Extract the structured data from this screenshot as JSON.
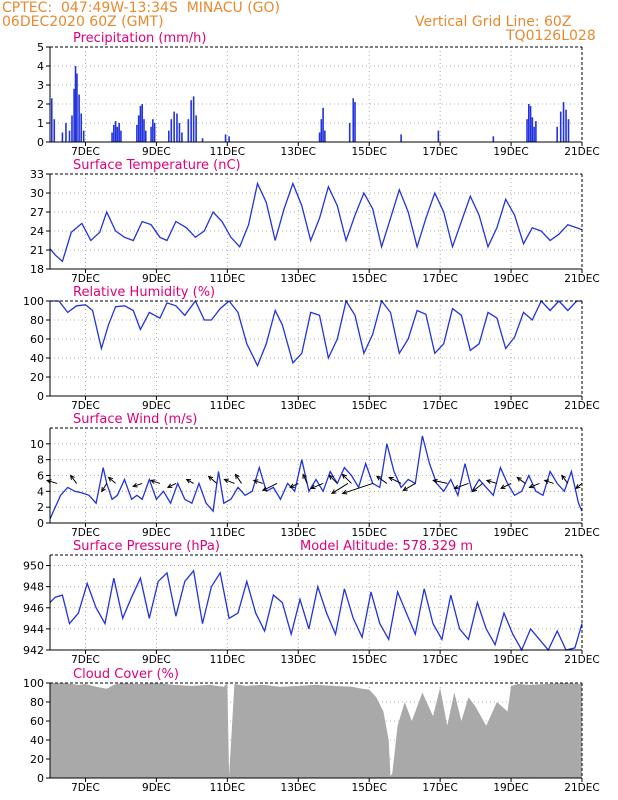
{
  "header": {
    "line1_left": "CPTEC:  047:49W-13:34S  MINACU (GO)",
    "line2_left": "06DEC2020 60Z (GMT)",
    "line1_right": "Vertical Grid Line: 60Z",
    "line2_right": "TQ0126L028"
  },
  "colors": {
    "header": "#e8892f",
    "panel_title": "#e0007a",
    "line": "#2233dd",
    "bar": "#2233dd",
    "cloud": "#a9a9a9",
    "arrow": "#000000"
  },
  "x_ticks": [
    "7DEC",
    "9DEC",
    "11DEC",
    "13DEC",
    "15DEC",
    "17DEC",
    "19DEC",
    "21DEC"
  ],
  "extra_label": "Model Altitude: 578.329 m",
  "chart_data": [
    {
      "type": "bar",
      "title": "Precipitation (mm/h)",
      "ylim": [
        0,
        5
      ],
      "yticks": [
        0,
        1,
        2,
        3,
        4,
        5
      ],
      "x_range": [
        6.0,
        21.0
      ],
      "values": [
        [
          6.05,
          2.3
        ],
        [
          6.12,
          1.2
        ],
        [
          6.35,
          0.5
        ],
        [
          6.45,
          1.0
        ],
        [
          6.55,
          0.6
        ],
        [
          6.62,
          1.4
        ],
        [
          6.68,
          2.8
        ],
        [
          6.72,
          4.0
        ],
        [
          6.76,
          3.6
        ],
        [
          6.82,
          2.5
        ],
        [
          6.88,
          1.5
        ],
        [
          6.95,
          0.6
        ],
        [
          7.75,
          0.5
        ],
        [
          7.8,
          0.9
        ],
        [
          7.85,
          1.1
        ],
        [
          7.9,
          0.8
        ],
        [
          7.95,
          1.0
        ],
        [
          8.0,
          0.6
        ],
        [
          8.45,
          0.9
        ],
        [
          8.5,
          1.4
        ],
        [
          8.55,
          1.9
        ],
        [
          8.6,
          2.0
        ],
        [
          8.65,
          1.2
        ],
        [
          8.7,
          0.6
        ],
        [
          8.85,
          0.8
        ],
        [
          8.9,
          1.2
        ],
        [
          8.95,
          1.0
        ],
        [
          9.35,
          0.6
        ],
        [
          9.42,
          1.2
        ],
        [
          9.5,
          1.6
        ],
        [
          9.58,
          1.5
        ],
        [
          9.65,
          1.0
        ],
        [
          9.72,
          0.5
        ],
        [
          9.9,
          1.2
        ],
        [
          9.98,
          2.2
        ],
        [
          10.05,
          2.4
        ],
        [
          10.12,
          1.4
        ],
        [
          10.3,
          0.2
        ],
        [
          10.95,
          0.4
        ],
        [
          11.05,
          0.3
        ],
        [
          13.6,
          0.5
        ],
        [
          13.65,
          1.2
        ],
        [
          13.7,
          1.8
        ],
        [
          13.75,
          0.6
        ],
        [
          14.45,
          1.0
        ],
        [
          14.55,
          2.3
        ],
        [
          14.6,
          2.1
        ],
        [
          15.9,
          0.4
        ],
        [
          16.95,
          0.6
        ],
        [
          18.5,
          0.3
        ],
        [
          19.45,
          1.2
        ],
        [
          19.5,
          2.0
        ],
        [
          19.55,
          1.9
        ],
        [
          19.6,
          1.3
        ],
        [
          19.65,
          0.8
        ],
        [
          19.7,
          1.1
        ],
        [
          20.3,
          0.8
        ],
        [
          20.4,
          1.6
        ],
        [
          20.48,
          2.1
        ],
        [
          20.55,
          1.7
        ],
        [
          20.62,
          1.2
        ]
      ]
    },
    {
      "type": "line",
      "title": "Surface Temperature (nC)",
      "ylim": [
        18,
        33
      ],
      "yticks": [
        18,
        21,
        24,
        27,
        30,
        33
      ],
      "x_range": [
        6.0,
        21.0
      ],
      "x": [
        6.0,
        6.15,
        6.35,
        6.6,
        6.9,
        7.15,
        7.4,
        7.6,
        7.85,
        8.1,
        8.35,
        8.6,
        8.85,
        9.1,
        9.3,
        9.55,
        9.85,
        10.1,
        10.35,
        10.6,
        10.85,
        11.1,
        11.35,
        11.6,
        11.85,
        12.1,
        12.35,
        12.6,
        12.85,
        13.1,
        13.35,
        13.6,
        13.85,
        14.1,
        14.35,
        14.6,
        14.85,
        15.1,
        15.35,
        15.6,
        15.85,
        16.1,
        16.35,
        16.6,
        16.85,
        17.1,
        17.35,
        17.6,
        17.85,
        18.1,
        18.35,
        18.6,
        18.85,
        19.1,
        19.35,
        19.6,
        19.85,
        20.1,
        20.35,
        20.6,
        20.85,
        21.0
      ],
      "y": [
        21.2,
        20.2,
        19.2,
        23.8,
        25.2,
        22.5,
        23.8,
        27.0,
        24.0,
        23.0,
        22.5,
        25.5,
        25.0,
        23.0,
        22.5,
        25.5,
        24.5,
        23.0,
        24.0,
        27.0,
        25.5,
        23.0,
        21.5,
        25.0,
        31.5,
        28.5,
        22.5,
        27.5,
        31.5,
        28.0,
        22.5,
        26.0,
        31.0,
        28.0,
        22.5,
        26.5,
        30.0,
        27.5,
        21.5,
        26.0,
        30.5,
        27.0,
        21.5,
        26.0,
        30.0,
        27.0,
        21.5,
        25.5,
        29.5,
        26.5,
        21.5,
        24.5,
        29.0,
        26.5,
        22.0,
        24.5,
        24.0,
        22.5,
        23.5,
        25.0,
        24.5,
        24.2
      ]
    },
    {
      "type": "line",
      "title": "Relative Humidity (%)",
      "ylim": [
        0,
        100
      ],
      "yticks": [
        0,
        20,
        40,
        60,
        80,
        100
      ],
      "x_range": [
        6.0,
        21.0
      ],
      "x": [
        6.0,
        6.25,
        6.5,
        6.75,
        7.0,
        7.2,
        7.45,
        7.65,
        7.85,
        8.1,
        8.35,
        8.55,
        8.8,
        9.1,
        9.3,
        9.55,
        9.8,
        10.1,
        10.35,
        10.55,
        10.8,
        11.05,
        11.3,
        11.55,
        11.85,
        12.1,
        12.35,
        12.55,
        12.85,
        13.1,
        13.35,
        13.6,
        13.85,
        14.1,
        14.35,
        14.6,
        14.85,
        15.1,
        15.35,
        15.6,
        15.85,
        16.1,
        16.35,
        16.6,
        16.85,
        17.1,
        17.35,
        17.6,
        17.85,
        18.1,
        18.35,
        18.6,
        18.85,
        19.1,
        19.35,
        19.6,
        19.85,
        20.1,
        20.35,
        20.6,
        20.85,
        21.0
      ],
      "y": [
        100,
        100,
        88,
        95,
        96,
        90,
        50,
        75,
        94,
        95,
        90,
        70,
        88,
        82,
        98,
        95,
        85,
        100,
        80,
        80,
        92,
        100,
        88,
        55,
        32,
        55,
        90,
        75,
        35,
        45,
        88,
        85,
        40,
        60,
        100,
        85,
        45,
        65,
        100,
        88,
        45,
        60,
        90,
        86,
        45,
        55,
        92,
        85,
        48,
        55,
        88,
        82,
        50,
        62,
        88,
        80,
        100,
        90,
        100,
        90,
        100,
        100
      ]
    },
    {
      "type": "line",
      "title": "Surface Wind (m/s)",
      "ylim": [
        0,
        12
      ],
      "yticks": [
        0,
        2,
        4,
        6,
        8,
        10
      ],
      "x_range": [
        6.0,
        21.0
      ],
      "x": [
        6.0,
        6.1,
        6.3,
        6.5,
        6.7,
        6.9,
        7.1,
        7.3,
        7.5,
        7.6,
        7.75,
        7.9,
        8.1,
        8.3,
        8.45,
        8.6,
        8.8,
        9.0,
        9.2,
        9.4,
        9.6,
        9.8,
        10.0,
        10.2,
        10.4,
        10.6,
        10.75,
        10.9,
        11.1,
        11.3,
        11.5,
        11.7,
        11.9,
        12.1,
        12.3,
        12.5,
        12.7,
        12.9,
        13.1,
        13.3,
        13.5,
        13.7,
        13.9,
        14.1,
        14.3,
        14.5,
        14.7,
        14.9,
        15.1,
        15.3,
        15.5,
        15.7,
        15.9,
        16.1,
        16.3,
        16.5,
        16.7,
        16.9,
        17.1,
        17.3,
        17.5,
        17.7,
        17.9,
        18.1,
        18.3,
        18.5,
        18.7,
        18.9,
        19.1,
        19.3,
        19.5,
        19.7,
        19.9,
        20.1,
        20.3,
        20.5,
        20.7,
        20.9,
        21.0
      ],
      "y": [
        0.5,
        1.5,
        3.5,
        4.5,
        4.0,
        3.8,
        3.5,
        2.5,
        7.0,
        5.0,
        3.0,
        3.5,
        5.5,
        3.0,
        3.5,
        3.0,
        5.5,
        3.0,
        4.0,
        2.5,
        5.0,
        3.0,
        2.5,
        5.0,
        2.5,
        1.5,
        6.5,
        2.5,
        3.0,
        4.5,
        3.5,
        4.0,
        7.0,
        4.0,
        4.5,
        3.0,
        5.0,
        4.0,
        8.0,
        4.0,
        5.5,
        4.0,
        6.5,
        5.0,
        7.0,
        6.0,
        4.5,
        7.5,
        5.0,
        4.5,
        10.0,
        6.5,
        4.5,
        5.5,
        5.0,
        11.0,
        7.5,
        5.0,
        4.0,
        5.5,
        3.5,
        7.5,
        4.0,
        5.5,
        4.5,
        3.5,
        7.0,
        5.0,
        3.5,
        4.0,
        6.0,
        4.0,
        3.5,
        6.5,
        5.0,
        4.0,
        6.5,
        2.5,
        1.5
      ]
    },
    {
      "type": "line",
      "title": "Surface Pressure (hPa)",
      "ylim": [
        942,
        951
      ],
      "yticks": [
        942,
        944,
        946,
        948,
        950
      ],
      "x_range": [
        6.0,
        21.0
      ],
      "x": [
        6.0,
        6.15,
        6.35,
        6.55,
        6.8,
        7.05,
        7.3,
        7.55,
        7.8,
        8.05,
        8.3,
        8.55,
        8.8,
        9.05,
        9.3,
        9.55,
        9.8,
        10.05,
        10.3,
        10.55,
        10.8,
        11.05,
        11.3,
        11.55,
        11.8,
        12.05,
        12.3,
        12.55,
        12.8,
        13.05,
        13.3,
        13.55,
        13.8,
        14.05,
        14.3,
        14.55,
        14.8,
        15.05,
        15.3,
        15.55,
        15.8,
        16.05,
        16.3,
        16.55,
        16.8,
        17.05,
        17.3,
        17.55,
        17.8,
        18.05,
        18.3,
        18.55,
        18.8,
        19.05,
        19.3,
        19.55,
        19.8,
        20.05,
        20.3,
        20.55,
        20.8,
        21.0
      ],
      "y": [
        946.5,
        947.0,
        947.2,
        944.5,
        945.5,
        948.3,
        946.0,
        944.5,
        948.8,
        945.0,
        947.0,
        948.8,
        945.0,
        948.5,
        949.3,
        945.2,
        948.5,
        949.5,
        944.5,
        948.0,
        949.3,
        945.0,
        945.5,
        948.5,
        945.5,
        943.8,
        947.2,
        946.5,
        943.5,
        946.8,
        944.0,
        948.0,
        945.5,
        943.5,
        947.8,
        945.0,
        943.2,
        947.5,
        944.5,
        943.0,
        947.5,
        945.5,
        943.5,
        947.8,
        944.5,
        943.0,
        947.2,
        944.0,
        943.0,
        946.5,
        944.0,
        942.5,
        945.5,
        943.5,
        942.0,
        944.0,
        943.0,
        942.0,
        943.8,
        942.0,
        942.2,
        944.5
      ]
    },
    {
      "type": "area",
      "title": "Cloud Cover (%)",
      "ylim": [
        0,
        100
      ],
      "yticks": [
        0,
        20,
        40,
        60,
        80,
        100
      ],
      "x_range": [
        6.0,
        21.0
      ],
      "x": [
        6.0,
        6.4,
        6.8,
        7.0,
        7.3,
        7.6,
        7.8,
        8.0,
        8.5,
        9.0,
        9.5,
        10.0,
        10.5,
        10.9,
        11.0,
        11.05,
        11.2,
        11.5,
        12.0,
        12.5,
        13.0,
        13.5,
        14.0,
        14.5,
        14.8,
        15.0,
        15.2,
        15.4,
        15.55,
        15.6,
        15.65,
        15.8,
        16.0,
        16.2,
        16.5,
        16.8,
        17.0,
        17.2,
        17.4,
        17.6,
        17.8,
        18.0,
        18.3,
        18.6,
        18.9,
        19.0,
        19.2,
        19.5,
        20.0,
        20.5,
        21.0
      ],
      "y": [
        100,
        100,
        98,
        99,
        96,
        94,
        98,
        100,
        99,
        100,
        98,
        97,
        98,
        96,
        100,
        2,
        99,
        97,
        98,
        96,
        97,
        98,
        97,
        96,
        94,
        93,
        85,
        70,
        40,
        2,
        5,
        55,
        80,
        60,
        90,
        65,
        95,
        55,
        90,
        60,
        85,
        75,
        55,
        80,
        70,
        97,
        99,
        98,
        99,
        100,
        99
      ]
    }
  ],
  "wind_arrows": [
    {
      "x": 6.2,
      "dx": -10,
      "dy": -3
    },
    {
      "x": 6.75,
      "dx": -6,
      "dy": -8
    },
    {
      "x": 7.6,
      "dx": -5,
      "dy": 8
    },
    {
      "x": 7.85,
      "dx": -7,
      "dy": -6
    },
    {
      "x": 8.6,
      "dx": -9,
      "dy": 3
    },
    {
      "x": 9.1,
      "dx": -9,
      "dy": -3
    },
    {
      "x": 9.55,
      "dx": -8,
      "dy": 4
    },
    {
      "x": 10.05,
      "dx": -7,
      "dy": -4
    },
    {
      "x": 10.7,
      "dx": -8,
      "dy": -7
    },
    {
      "x": 11.2,
      "dx": -10,
      "dy": -4
    },
    {
      "x": 11.4,
      "dx": -6,
      "dy": -9
    },
    {
      "x": 12.0,
      "dx": -9,
      "dy": -3
    },
    {
      "x": 12.4,
      "dx": -14,
      "dy": 7
    },
    {
      "x": 13.0,
      "dx": -8,
      "dy": 4
    },
    {
      "x": 13.25,
      "dx": -4,
      "dy": -9
    },
    {
      "x": 13.7,
      "dx": -12,
      "dy": 5
    },
    {
      "x": 14.1,
      "dx": -8,
      "dy": -8
    },
    {
      "x": 14.4,
      "dx": -16,
      "dy": 10
    },
    {
      "x": 14.5,
      "dx": -9,
      "dy": -9
    },
    {
      "x": 15.1,
      "dx": -30,
      "dy": 10
    },
    {
      "x": 15.5,
      "dx": -10,
      "dy": -7
    },
    {
      "x": 15.9,
      "dx": -12,
      "dy": -6
    },
    {
      "x": 16.3,
      "dx": -12,
      "dy": 7
    },
    {
      "x": 17.2,
      "dx": -14,
      "dy": -3
    },
    {
      "x": 17.8,
      "dx": -14,
      "dy": 5
    },
    {
      "x": 18.2,
      "dx": -10,
      "dy": 8
    },
    {
      "x": 18.6,
      "dx": -10,
      "dy": -3
    },
    {
      "x": 19.0,
      "dx": -10,
      "dy": 5
    },
    {
      "x": 19.4,
      "dx": -8,
      "dy": -6
    },
    {
      "x": 19.8,
      "dx": -10,
      "dy": 4
    },
    {
      "x": 20.2,
      "dx": -9,
      "dy": -3
    },
    {
      "x": 20.6,
      "dx": -6,
      "dy": -8
    },
    {
      "x": 21.0,
      "dx": -6,
      "dy": 5
    }
  ]
}
